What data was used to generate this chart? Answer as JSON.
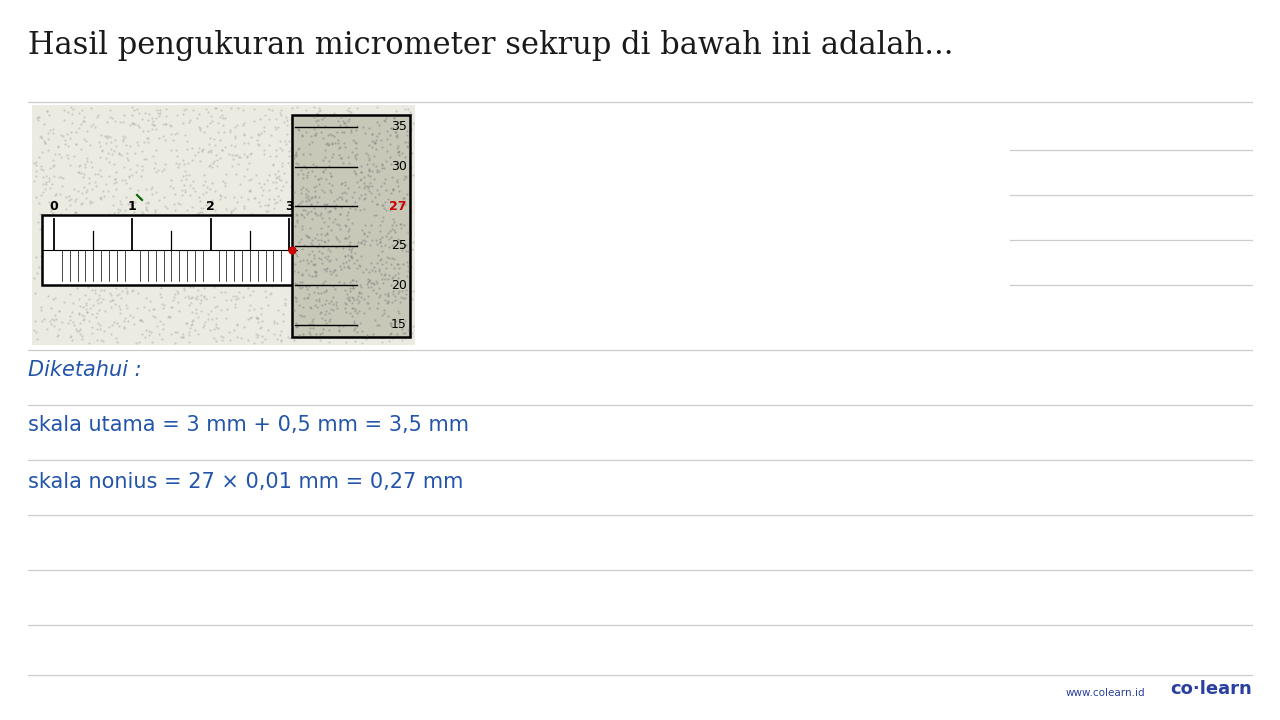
{
  "title": "Hasil pengukuran micrometer sekrup di bawah ini adalah...",
  "title_fontsize": 22,
  "title_color": "#1a1a1a",
  "bg_color": "#ffffff",
  "line_color": "#cccccc",
  "text_blue": "#2255aa",
  "diketahui_label": "Diketahui :",
  "line1": "skala utama = 3 mm + 0,5 mm = 3,5 mm",
  "line2": "skala nonius = 27 × 0,01 mm = 0,27 mm",
  "brand_small": "www.colearn.id",
  "brand_large": "co·learn",
  "red_dot_color": "#cc0000",
  "thimble_values": [
    35,
    30,
    27,
    25,
    20,
    15
  ],
  "main_scale_labels": [
    "0",
    "1",
    "2",
    "3"
  ]
}
